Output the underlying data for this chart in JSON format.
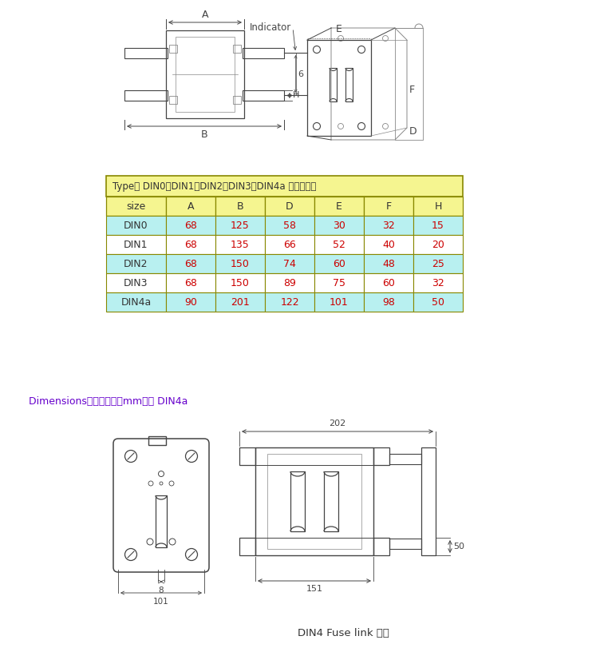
{
  "bg_color": "#ffffff",
  "table_header_bg": "#f5f590",
  "table_row_bg_even": "#b8f0f0",
  "table_row_bg_odd": "#ffffff",
  "table_border_color": "#888800",
  "table_header_title": "Type： DIN0、DIN1、DIN2、DIN3、DIN4a 尺寸示意图",
  "table_columns": [
    "size",
    "A",
    "B",
    "D",
    "E",
    "F",
    "H"
  ],
  "table_data": [
    [
      "DIN0",
      "68",
      "125",
      "58",
      "30",
      "32",
      "15"
    ],
    [
      "DIN1",
      "68",
      "135",
      "66",
      "52",
      "40",
      "20"
    ],
    [
      "DIN2",
      "68",
      "150",
      "74",
      "60",
      "48",
      "25"
    ],
    [
      "DIN3",
      "68",
      "150",
      "89",
      "75",
      "60",
      "32"
    ],
    [
      "DIN4a",
      "90",
      "201",
      "122",
      "101",
      "98",
      "50"
    ]
  ],
  "table_text_color": "#cc0000",
  "dim_label_color": "#6600cc",
  "dim_label_text": "Dimensions安装尺寸图（mm）： DIN4a",
  "bottom_label": "DIN4 Fuse link 熔体",
  "indicator_text": "Indicator",
  "dark": "#444444",
  "gray": "#888888"
}
